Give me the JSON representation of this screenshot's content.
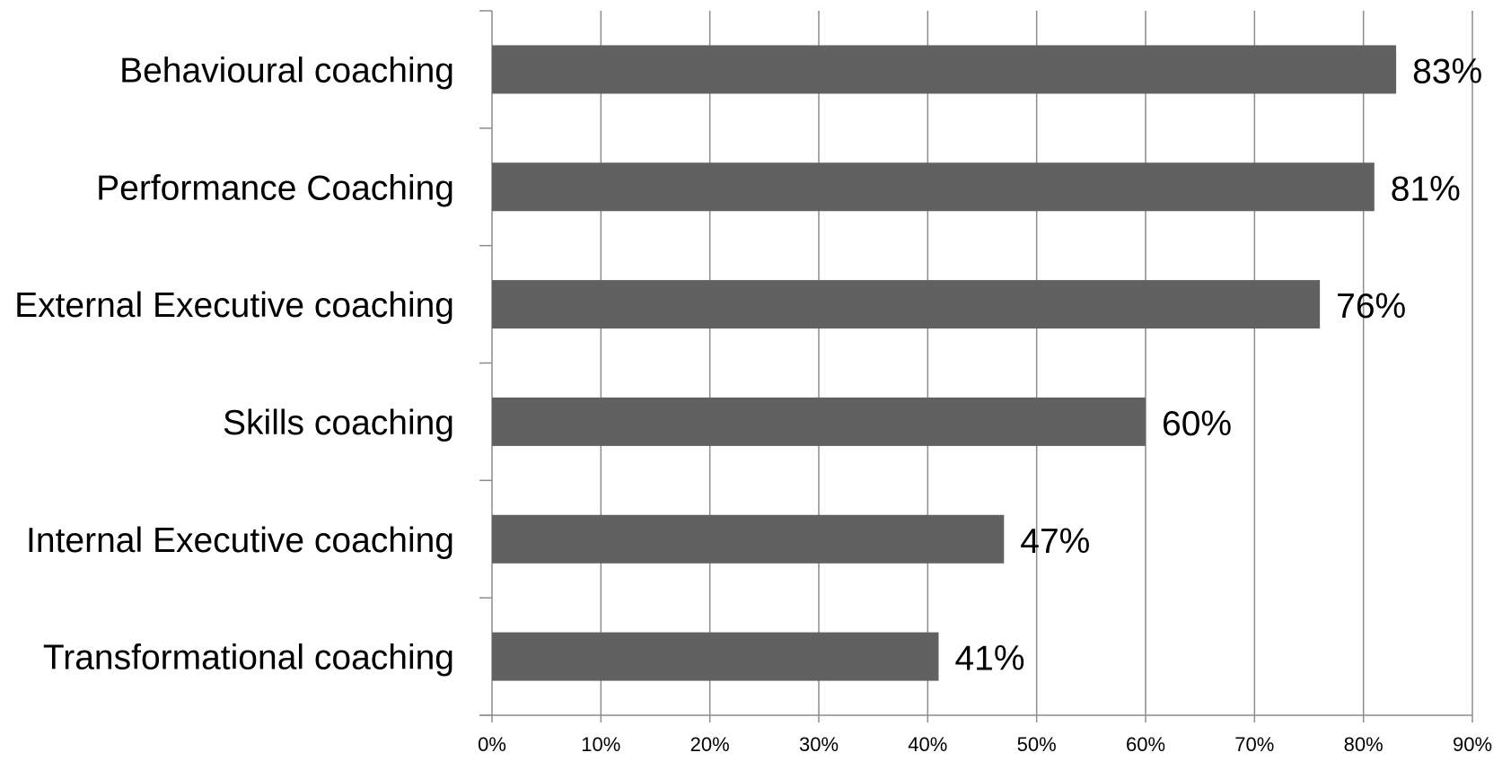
{
  "chart_data": {
    "type": "bar",
    "orientation": "horizontal",
    "title": "",
    "xlabel": "",
    "ylabel": "",
    "categories": [
      "Behavioural coaching",
      "Performance Coaching",
      "External Executive coaching",
      "Skills coaching",
      "Internal Executive coaching",
      "Transformational coaching"
    ],
    "values": [
      83,
      81,
      76,
      60,
      47,
      41
    ],
    "data_labels": [
      "83%",
      "81%",
      "76%",
      "60%",
      "47%",
      "41%"
    ],
    "xlim": [
      0,
      90
    ],
    "x_ticks": [
      0,
      10,
      20,
      30,
      40,
      50,
      60,
      70,
      80,
      90
    ],
    "x_tick_labels": [
      "0%",
      "10%",
      "20%",
      "30%",
      "40%",
      "50%",
      "60%",
      "70%",
      "80%",
      "90%"
    ],
    "grid": "vertical",
    "legend": "none",
    "colors": {
      "bar": "#616161",
      "grid": "#8c8c8c",
      "axis": "#8c8c8c",
      "text": "#000000"
    }
  }
}
